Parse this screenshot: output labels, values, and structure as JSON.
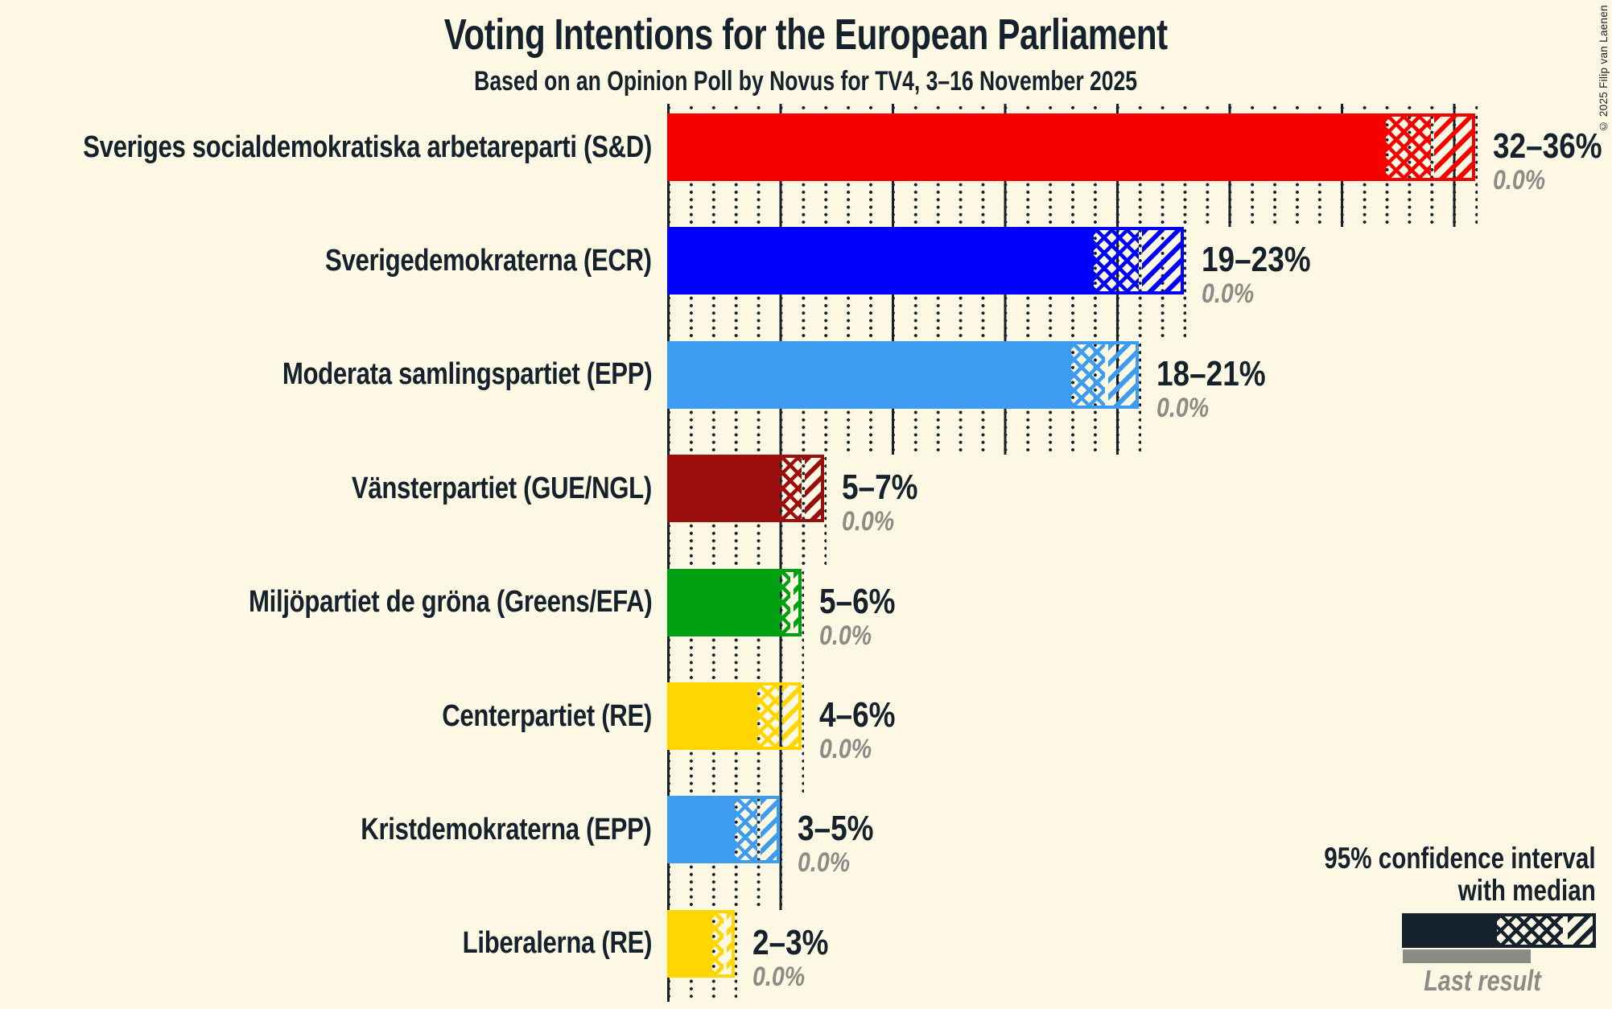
{
  "colors": {
    "background": "#FCF8E3",
    "ink": "#15222D",
    "muted_gray": "#8C8C86"
  },
  "copyright": "© 2025 Filip van Laenen",
  "legend": {
    "title_line1": "95% confidence interval",
    "title_line2": "with median",
    "last_result_label": "Last result"
  },
  "chart_data": {
    "type": "bar",
    "orientation": "horizontal",
    "title": "Voting Intentions for the European Parliament",
    "subtitle": "Based on an Opinion Poll by Novus for TV4, 3–16 November 2025",
    "unit": "%",
    "x_min": 0,
    "x_max": 36,
    "gridlines": {
      "dotted_every_percent": 1,
      "solid_every_percent": 5
    },
    "series_note": "bars show 95% confidence interval with median; crosshatch = lower bound to median, diagonal hatch = median to upper bound; gray underbar = last result",
    "parties": [
      {
        "label": "Sveriges socialdemokratiska arbetareparti (S&D)",
        "color": "#F70000",
        "ci_low": 32,
        "median": 34,
        "ci_high": 36,
        "range_label": "32–36%",
        "last_result": 0.0,
        "last_result_label": "0.0%"
      },
      {
        "label": "Sverigedemokraterna (ECR)",
        "color": "#0000FE",
        "ci_low": 19,
        "median": 21,
        "ci_high": 23,
        "range_label": "19–23%",
        "last_result": 0.0,
        "last_result_label": "0.0%"
      },
      {
        "label": "Moderata samlingspartiet (EPP)",
        "color": "#3D9BF0",
        "ci_low": 18,
        "median": 19.5,
        "ci_high": 21,
        "range_label": "18–21%",
        "last_result": 0.0,
        "last_result_label": "0.0%"
      },
      {
        "label": "Vänsterpartiet (GUE/NGL)",
        "color": "#9B0E0E",
        "ci_low": 5,
        "median": 6,
        "ci_high": 7,
        "range_label": "5–7%",
        "last_result": 0.0,
        "last_result_label": "0.0%"
      },
      {
        "label": "Miljöpartiet de gröna (Greens/EFA)",
        "color": "#00A013",
        "ci_low": 5,
        "median": 5.5,
        "ci_high": 6,
        "range_label": "5–6%",
        "last_result": 0.0,
        "last_result_label": "0.0%"
      },
      {
        "label": "Centerpartiet (RE)",
        "color": "#FFD600",
        "ci_low": 4,
        "median": 5,
        "ci_high": 6,
        "range_label": "4–6%",
        "last_result": 0.0,
        "last_result_label": "0.0%"
      },
      {
        "label": "Kristdemokraterna (EPP)",
        "color": "#3D9BF0",
        "ci_low": 3,
        "median": 4,
        "ci_high": 5,
        "range_label": "3–5%",
        "last_result": 0.0,
        "last_result_label": "0.0%"
      },
      {
        "label": "Liberalerna (RE)",
        "color": "#FFD600",
        "ci_low": 2,
        "median": 2.5,
        "ci_high": 3,
        "range_label": "2–3%",
        "last_result": 0.0,
        "last_result_label": "0.0%"
      }
    ]
  }
}
